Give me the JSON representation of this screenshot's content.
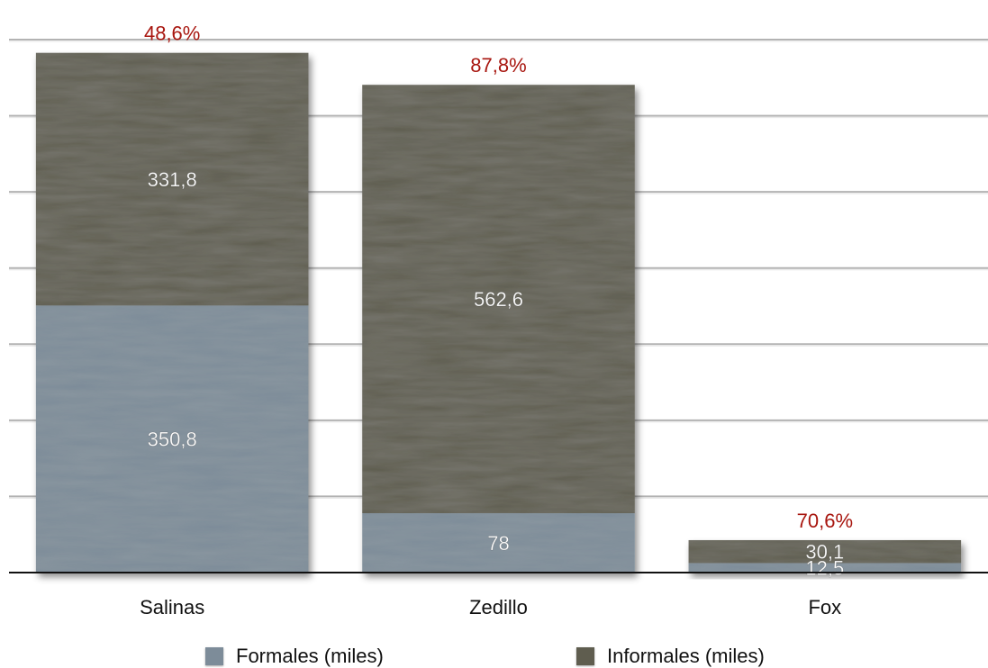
{
  "chart_data": {
    "type": "bar",
    "stacked": true,
    "categories": [
      "Salinas",
      "Zedillo",
      "Fox"
    ],
    "series": [
      {
        "name": "Formales (miles)",
        "values": [
          350.8,
          78,
          12.5
        ],
        "labels": [
          "350,8",
          "78",
          "12,5"
        ],
        "color": "#7d8c99"
      },
      {
        "name": "Informales (miles)",
        "values": [
          331.8,
          562.6,
          30.1
        ],
        "labels": [
          "331,8",
          "562,6",
          "30,1"
        ],
        "color": "#5f5d4f"
      }
    ],
    "top_labels": [
      "48,6%",
      "87,8%",
      "70,6%"
    ],
    "top_label_color": "#a8160f",
    "ylim": [
      0,
      700
    ],
    "grid": true,
    "legend_position": "bottom"
  }
}
